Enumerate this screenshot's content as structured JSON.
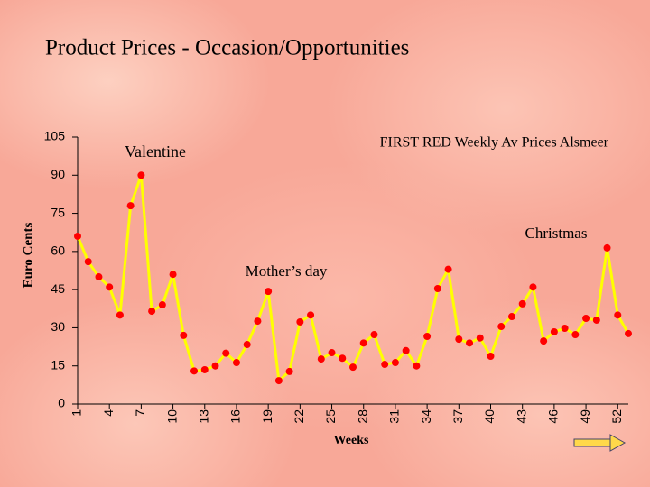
{
  "chart_data": {
    "type": "line",
    "title": "Product  Prices - Occasion/Opportunities",
    "y_label": "Euro  Cents",
    "x_label": "Weeks",
    "annotations": [
      "Valentine",
      "FIRST RED Weekly Av Prices Alsmeer",
      "Christmas",
      "Mother’s day"
    ],
    "x": [
      1,
      2,
      3,
      4,
      5,
      6,
      7,
      8,
      9,
      10,
      11,
      12,
      13,
      14,
      15,
      16,
      17,
      18,
      19,
      20,
      21,
      22,
      23,
      24,
      25,
      26,
      27,
      28,
      29,
      30,
      31,
      32,
      33,
      34,
      35,
      36,
      37,
      38,
      39,
      40,
      41,
      42,
      43,
      44,
      45,
      46,
      47,
      48,
      49,
      50,
      51,
      52,
      53
    ],
    "series": [
      {
        "name": "FIRST RED",
        "color": "#ffff00",
        "marker_color": "#ff0000",
        "values": [
          66,
          56,
          50,
          46,
          35,
          78,
          90,
          36.5,
          39,
          51,
          27,
          13,
          13.5,
          15,
          20,
          16.3,
          23.4,
          32.6,
          44.3,
          9.2,
          12.8,
          32.3,
          35,
          17.7,
          20.2,
          18,
          14.5,
          24,
          27.3,
          15.6,
          16.3,
          21,
          15,
          26.6,
          45.4,
          53,
          25.5,
          24,
          26,
          18.8,
          30.5,
          34.4,
          39.4,
          46,
          24.8,
          28.4,
          29.8,
          27.3,
          33.7,
          33,
          61.4,
          35,
          27.7
        ]
      }
    ],
    "xlim": [
      1,
      53
    ],
    "xticks": [
      1,
      4,
      7,
      10,
      13,
      16,
      19,
      22,
      25,
      28,
      31,
      34,
      37,
      40,
      43,
      46,
      49,
      52
    ],
    "ylim": [
      0,
      105
    ],
    "yticks": [
      0,
      15,
      30,
      45,
      60,
      75,
      90,
      105
    ]
  }
}
